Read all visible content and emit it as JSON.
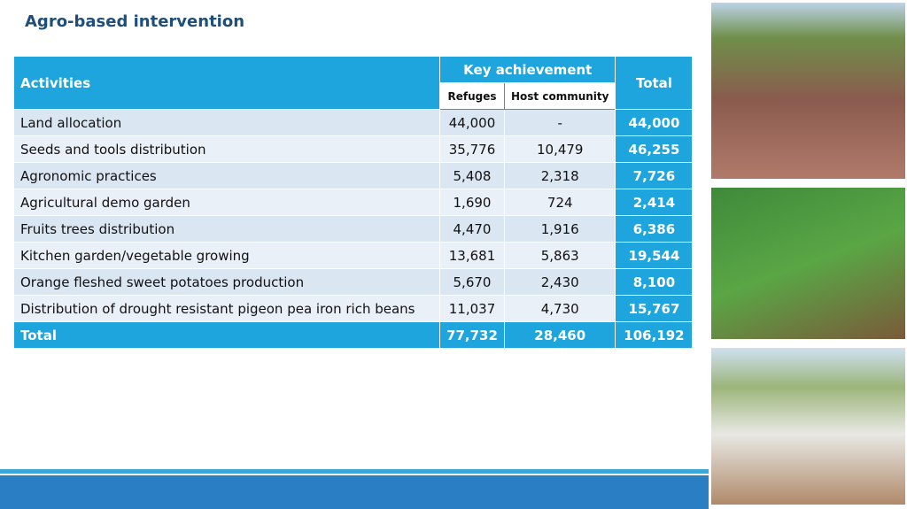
{
  "header": {
    "title": "Agro-based intervention"
  },
  "table": {
    "header": {
      "activities": "Activities",
      "key_achievement": "Key achievement",
      "total": "Total",
      "refugees": "Refuges",
      "host": "Host community"
    },
    "rows": [
      [
        "Land allocation",
        "44,000",
        "-",
        "44,000"
      ],
      [
        "Seeds and tools distribution",
        "35,776",
        "10,479",
        "46,255"
      ],
      [
        "Agronomic practices",
        "5,408",
        "2,318",
        "7,726"
      ],
      [
        "Agricultural demo garden",
        "1,690",
        "724",
        "2,414"
      ],
      [
        "Fruits trees distribution",
        "4,470",
        "1,916",
        "6,386"
      ],
      [
        "Kitchen garden/vegetable growing",
        "13,681",
        "5,863",
        "19,544"
      ],
      [
        "Orange fleshed sweet potatoes production",
        "5,670",
        "2,430",
        "8,100"
      ],
      [
        "Distribution of drought resistant pigeon pea iron rich beans",
        "11,037",
        "4,730",
        "15,767"
      ]
    ],
    "total_row": [
      "Total",
      "77,732",
      "28,460",
      "106,192"
    ]
  }
}
